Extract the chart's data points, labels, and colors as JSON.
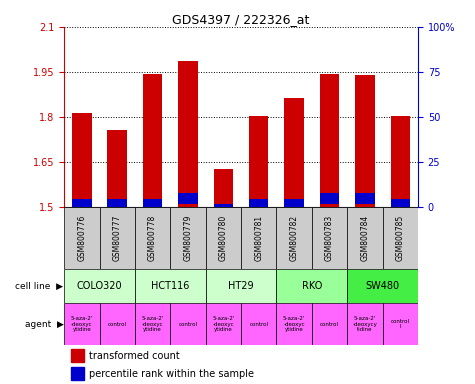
{
  "title": "GDS4397 / 222326_at",
  "samples": [
    "GSM800776",
    "GSM800777",
    "GSM800778",
    "GSM800779",
    "GSM800780",
    "GSM800781",
    "GSM800782",
    "GSM800783",
    "GSM800784",
    "GSM800785"
  ],
  "red_values": [
    1.812,
    1.757,
    1.942,
    1.988,
    1.627,
    1.804,
    1.863,
    1.942,
    1.94,
    1.804
  ],
  "blue_values": [
    0.025,
    0.025,
    0.025,
    0.038,
    0.01,
    0.025,
    0.025,
    0.038,
    0.038,
    0.025
  ],
  "blue_bottom": [
    1.502,
    1.502,
    1.502,
    1.51,
    1.5,
    1.502,
    1.502,
    1.51,
    1.51,
    1.502
  ],
  "bar_bottom": 1.5,
  "ylim_left": [
    1.5,
    2.1
  ],
  "ylim_right": [
    0,
    100
  ],
  "yticks_left": [
    1.5,
    1.65,
    1.8,
    1.95,
    2.1
  ],
  "ytick_labels_left": [
    "1.5",
    "1.65",
    "1.8",
    "1.95",
    "2.1"
  ],
  "yticks_right": [
    0,
    25,
    50,
    75,
    100
  ],
  "ytick_labels_right": [
    "0",
    "25",
    "50",
    "75",
    "100%"
  ],
  "cell_lines": [
    {
      "label": "COLO320",
      "start": 0,
      "end": 2,
      "color": "#ccffcc"
    },
    {
      "label": "HCT116",
      "start": 2,
      "end": 4,
      "color": "#ccffcc"
    },
    {
      "label": "HT29",
      "start": 4,
      "end": 6,
      "color": "#ccffcc"
    },
    {
      "label": "RKO",
      "start": 6,
      "end": 8,
      "color": "#99ff99"
    },
    {
      "label": "SW480",
      "start": 8,
      "end": 10,
      "color": "#44ee44"
    }
  ],
  "agent_labels": [
    "5-aza-2'\n-deoxyc\nytidine",
    "control",
    "5-aza-2'\n-deoxyc\nytidine",
    "control",
    "5-aza-2'\n-deoxyc\nytidine",
    "control",
    "5-aza-2'\n-deoxyc\nytidine",
    "control",
    "5-aza-2'\n-deoxycy\ntidine",
    "control\nl"
  ],
  "agent_starts": [
    0,
    1,
    2,
    3,
    4,
    5,
    6,
    7,
    8,
    9
  ],
  "agent_ends": [
    1,
    2,
    3,
    4,
    5,
    6,
    7,
    8,
    9,
    10
  ],
  "agent_color": "#ff66ff",
  "red_color": "#cc0000",
  "blue_color": "#0000cc",
  "bar_width": 0.55,
  "grid_color": "#000000",
  "left_tick_color": "#cc0000",
  "right_tick_color": "#0000cc",
  "sample_box_color": "#cccccc",
  "legend_red": "transformed count",
  "legend_blue": "percentile rank within the sample",
  "cell_line_label": "cell line",
  "agent_label": "agent"
}
